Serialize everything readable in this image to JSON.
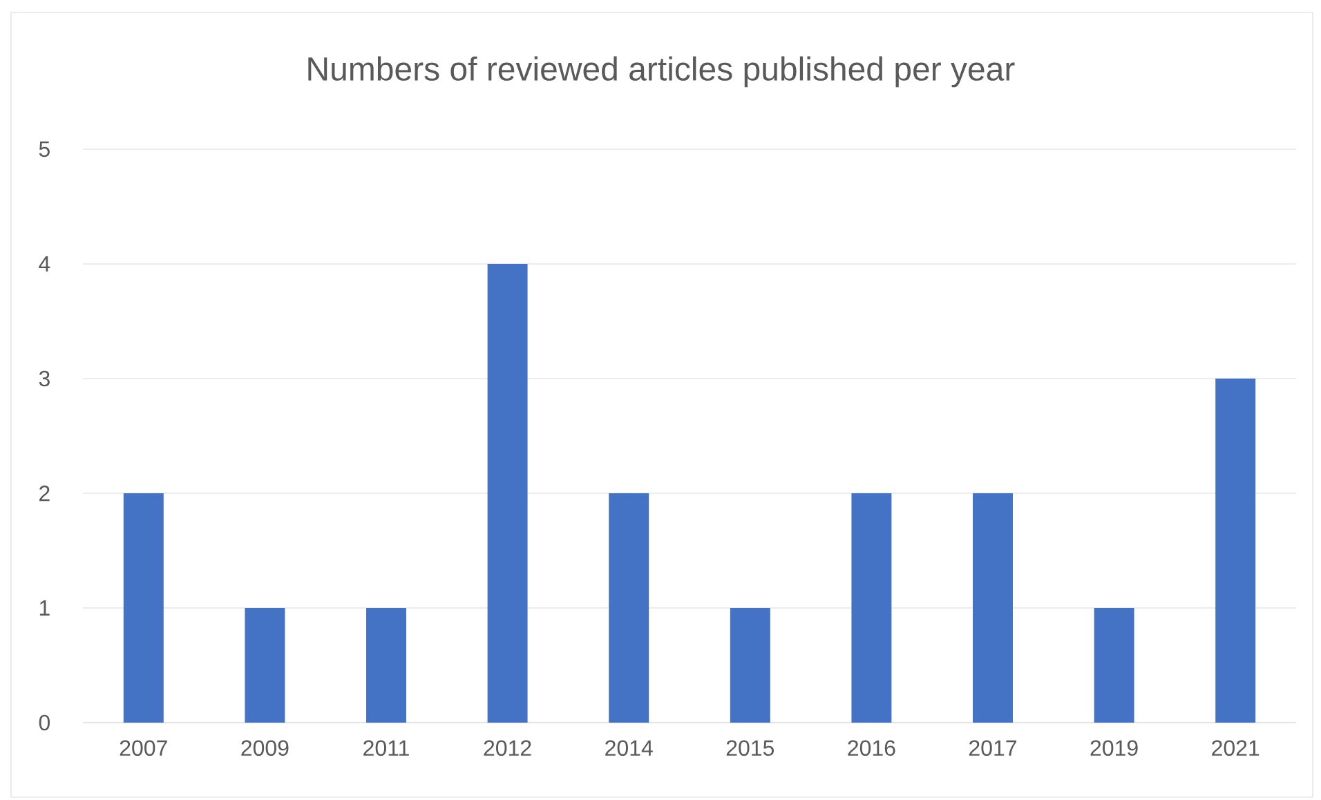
{
  "chart_data": {
    "type": "bar",
    "title": "Numbers of reviewed articles published per year",
    "categories": [
      "2007",
      "2009",
      "2011",
      "2012",
      "2014",
      "2015",
      "2016",
      "2017",
      "2019",
      "2021"
    ],
    "values": [
      2,
      1,
      1,
      4,
      2,
      1,
      2,
      2,
      1,
      3
    ],
    "color": "#4472c4",
    "ylim": [
      0,
      5
    ],
    "yticks": [
      0,
      1,
      2,
      3,
      4,
      5
    ],
    "grid": true
  }
}
